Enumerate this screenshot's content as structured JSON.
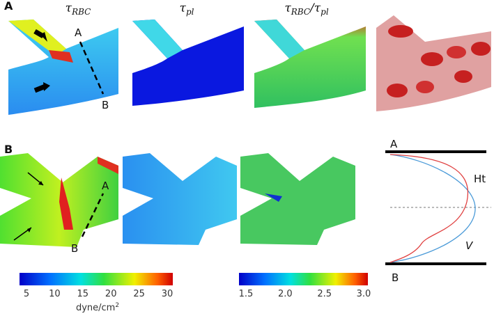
{
  "panel_a": {
    "label": "A",
    "title_1": [
      "τ",
      "RBC"
    ],
    "title_2": [
      "τ",
      "pl"
    ],
    "title_3": [
      "τ",
      "RBC",
      "/τ",
      "pl"
    ],
    "marker_a": "A",
    "marker_b": "B"
  },
  "panel_b": {
    "label": "B",
    "marker_a": "A",
    "marker_b": "B",
    "profile": {
      "top": "A",
      "bottom": "B",
      "ht": "Ht",
      "v": "V"
    }
  },
  "colorbar_1": {
    "ticks": [
      "5",
      "10",
      "15",
      "20",
      "25",
      "30"
    ],
    "unit": [
      "dyne/cm",
      "2"
    ]
  },
  "colorbar_2": {
    "ticks": [
      "1.5",
      "2.0",
      "2.5",
      "3.0"
    ]
  }
}
